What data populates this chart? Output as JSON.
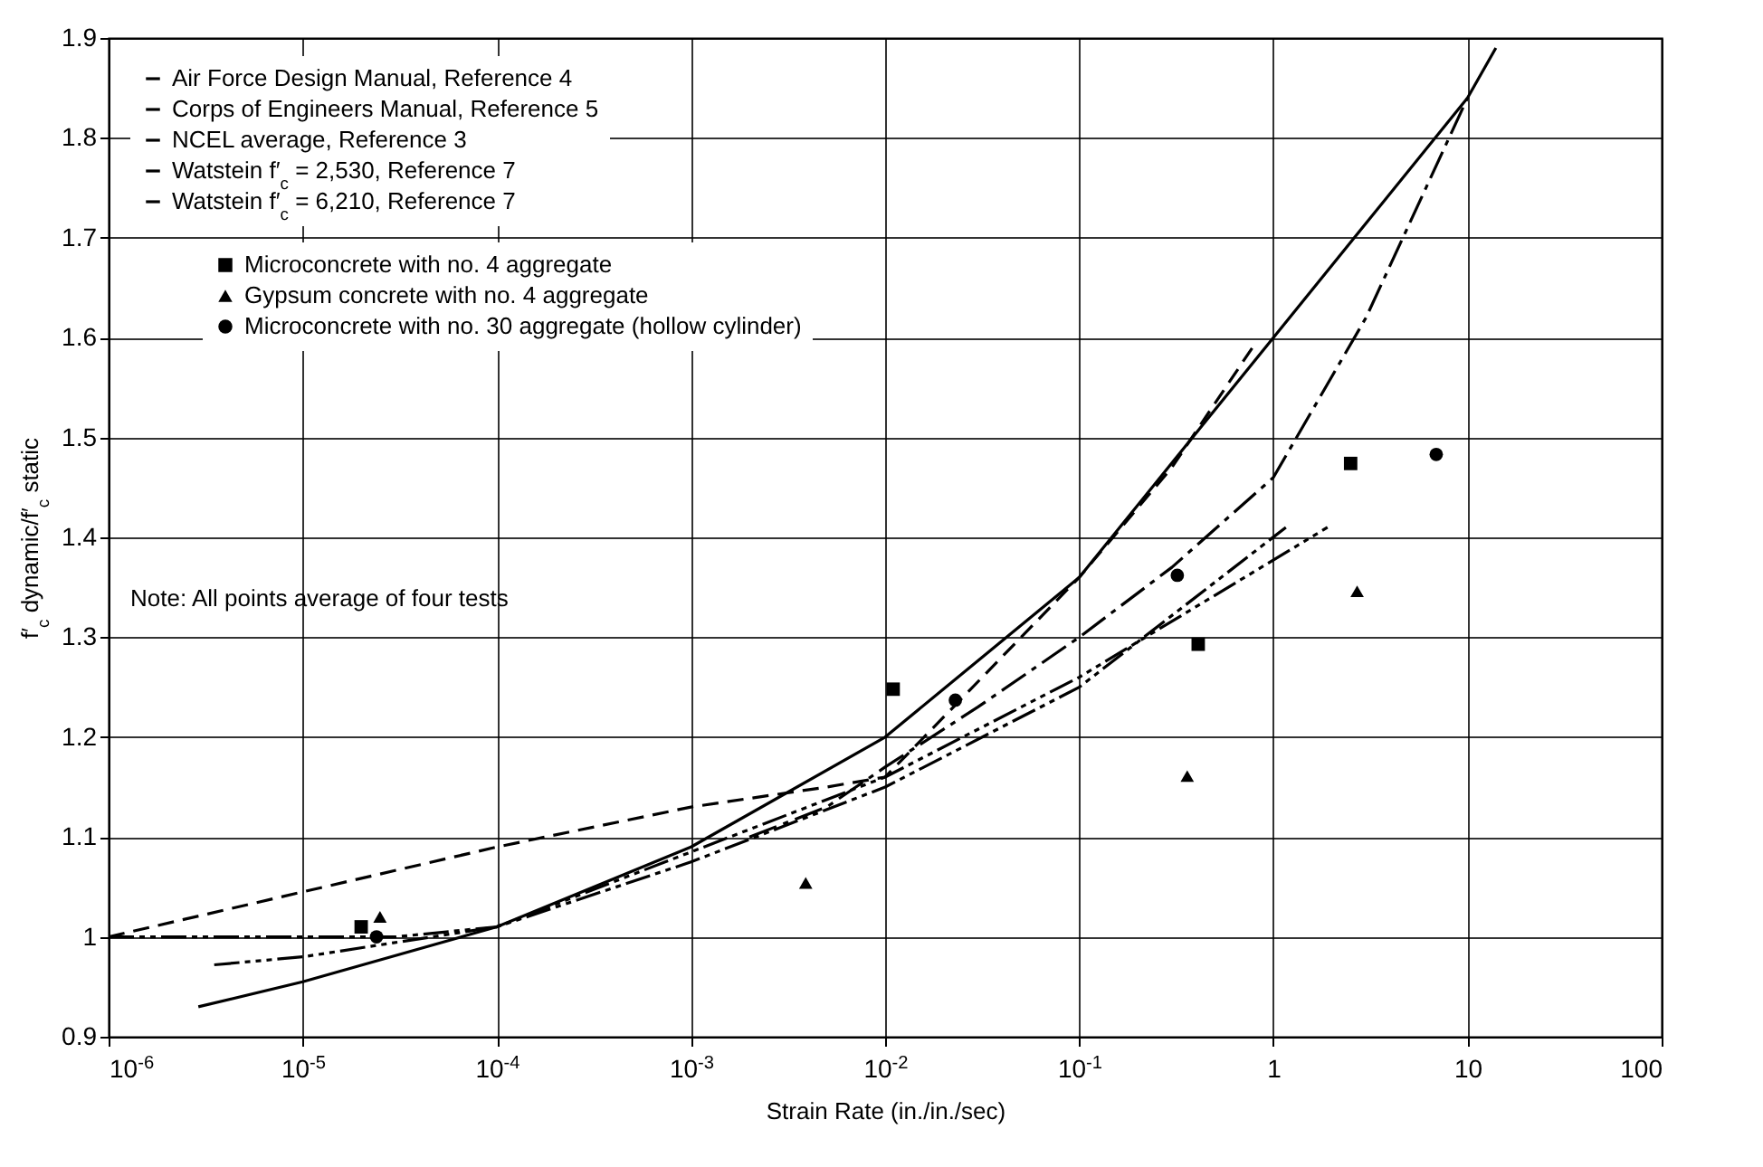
{
  "chart_data": {
    "type": "line",
    "xlabel": "Strain Rate (in./in./sec)",
    "ylabel": "f′$_{c}$ dynamic/f′$_{c}$ static",
    "log": "x",
    "grid": true,
    "legend": "top left",
    "xlim": [
      1e-06,
      100
    ],
    "ylim": [
      0.9,
      1.9
    ],
    "xticks": [
      {
        "value": 1e-06,
        "label": "10$^{-6}$"
      },
      {
        "value": 1e-05,
        "label": "10$^{-5}$"
      },
      {
        "value": 0.0001,
        "label": "10$^{-4}$"
      },
      {
        "value": 0.001,
        "label": "10$^{-3}$"
      },
      {
        "value": 0.01,
        "label": "10$^{-2}$"
      },
      {
        "value": 0.1,
        "label": "10$^{-1}$"
      },
      1,
      10,
      100
    ],
    "yticks": [
      0.9,
      1.0,
      1.1,
      1.2,
      1.3,
      1.4,
      1.5,
      1.6,
      1.7,
      1.8,
      1.9
    ],
    "annotations": [
      "Note: All points average of four tests"
    ],
    "series": [
      {
        "name": "Air Force Design Manual, Reference 4",
        "type": "line",
        "line_style": "solid",
        "color": "#000000",
        "x": [
          2.9e-06,
          1e-05,
          0.0001,
          0.001,
          0.01,
          0.1,
          1,
          10,
          14
        ],
        "values": [
          0.93,
          0.955,
          1.01,
          1.09,
          1.2,
          1.36,
          1.6,
          1.84,
          1.89
        ]
      },
      {
        "name": "Corps of Engineers Manual, Reference 5",
        "type": "line",
        "line_style": "dashed",
        "color": "#000000",
        "x": [
          0.002,
          0.005,
          0.01,
          0.03,
          0.1,
          0.3,
          1,
          3,
          10
        ],
        "values": [
          1.1,
          1.13,
          1.17,
          1.23,
          1.3,
          1.37,
          1.46,
          1.62,
          1.84
        ]
      },
      {
        "name": "NCEL average, Reference 3",
        "type": "line",
        "line_style": "dashed",
        "color": "#000000",
        "x": [
          1e-06,
          1e-05,
          0.0001,
          0.001,
          0.005,
          0.01,
          0.02,
          0.1,
          0.3,
          0.78
        ],
        "values": [
          1.0,
          1.045,
          1.09,
          1.13,
          1.15,
          1.16,
          1.22,
          1.36,
          1.47,
          1.59
        ]
      },
      {
        "name": "Watstein f′$_{c}$ = 2,530, Reference 7",
        "type": "line",
        "line_style": "dotted",
        "color": "#000000",
        "x": [
          1e-06,
          1e-05,
          3e-05,
          0.0001,
          0.001,
          0.01,
          0.1,
          1.16
        ],
        "values": [
          1.0,
          1.0,
          1.0,
          1.01,
          1.075,
          1.15,
          1.25,
          1.41
        ]
      },
      {
        "name": "Watstein f′$_{c}$ = 6,210, Reference 7",
        "type": "line",
        "line_style": "dotted",
        "color": "#000000",
        "x": [
          3.5e-06,
          1e-05,
          0.0001,
          0.001,
          0.01,
          0.1,
          1.9
        ],
        "values": [
          0.972,
          0.98,
          1.01,
          1.085,
          1.16,
          1.26,
          1.41
        ]
      },
      {
        "name": "Microconcrete with no. 4 aggregate",
        "type": "scatter",
        "marker": "square",
        "color": "#000000",
        "x": [
          2e-05,
          0.011,
          0.41,
          2.5
        ],
        "values": [
          1.01,
          1.248,
          1.293,
          1.474
        ]
      },
      {
        "name": "Gypsum concrete with no. 4 aggregate",
        "type": "scatter",
        "marker": "triangle",
        "color": "#000000",
        "x": [
          2.5e-05,
          0.0039,
          0.36,
          2.7
        ],
        "values": [
          1.02,
          1.054,
          1.161,
          1.346
        ]
      },
      {
        "name": "Microconcrete with no. 30 aggregate (hollow cylinder)",
        "type": "scatter",
        "marker": "circle",
        "color": "#000000",
        "x": [
          2.4e-05,
          0.023,
          0.32,
          6.9
        ],
        "values": [
          1.0,
          1.237,
          1.362,
          1.483
        ]
      }
    ]
  }
}
